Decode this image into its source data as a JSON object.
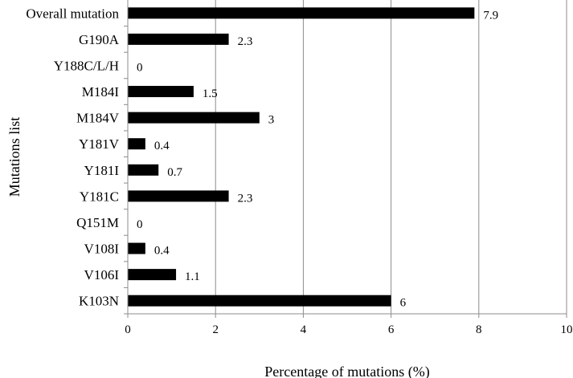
{
  "chart_data": {
    "type": "bar",
    "orientation": "horizontal",
    "categories": [
      "Overall mutation",
      "G190A",
      "Y188C/L/H",
      "M184I",
      "M184V",
      "Y181V",
      "Y181I",
      "Y181C",
      "Q151M",
      "V108I",
      "V106I",
      "K103N"
    ],
    "values": [
      7.9,
      2.3,
      0,
      1.5,
      3,
      0.4,
      0.7,
      2.3,
      0,
      0.4,
      1.1,
      6
    ],
    "data_labels": [
      "7.9",
      "2.3",
      "0",
      "1.5",
      "3",
      "0.4",
      "0.7",
      "2.3",
      "0",
      "0.4",
      "1.1",
      "6"
    ],
    "x_ticks": [
      "0",
      "2",
      "4",
      "6",
      "8",
      "10"
    ],
    "xlim": [
      0,
      10
    ],
    "xlabel": "Percentage of mutations (%)",
    "ylabel": "Mutations list",
    "title": "",
    "grid": "vertical",
    "legend": "none",
    "bar_color": "#000000",
    "grid_color": "#8c8c8c"
  }
}
